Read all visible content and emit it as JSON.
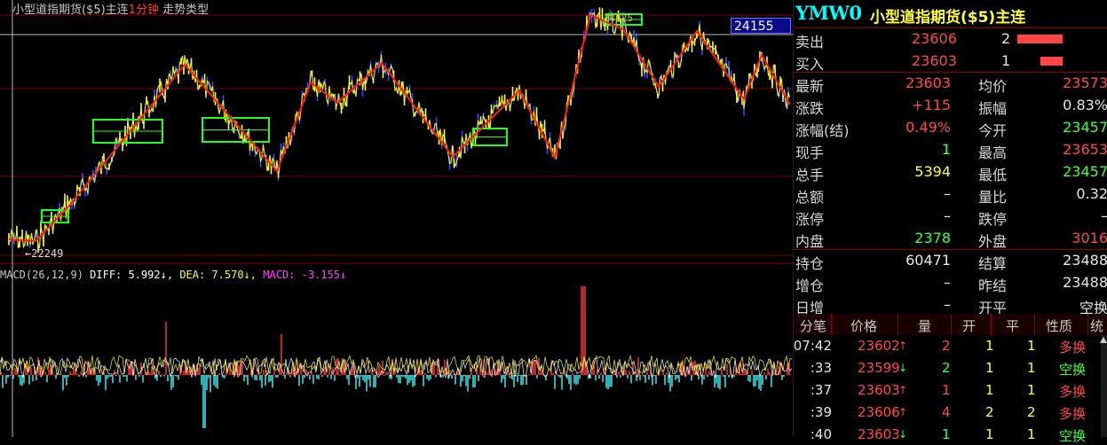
{
  "chart": {
    "title_prefix": "小型道指期货($5)主连",
    "period": "1分钟",
    "trend_label": "走势类型",
    "low_label": "22249",
    "high_label": "24325",
    "current_price_box": "24155"
  },
  "macd": {
    "name": "MACD(26,12,9)",
    "diff": "DIFF: 5.992↓,",
    "dea": "DEA: 7.570↓,",
    "macd": "MACD: -3.155↓"
  },
  "panel": {
    "code": "YMW0",
    "name": "小型道指期货($5)主连",
    "sell": {
      "label": "卖出",
      "price": "23606",
      "volume": "2"
    },
    "buy": {
      "label": "买入",
      "price": "23603",
      "volume": "1"
    },
    "stats": [
      {
        "l1": "最新",
        "v1": "23603",
        "c1": "red",
        "l2": "均价",
        "v2": "23573",
        "c2": "red"
      },
      {
        "l1": "涨跌",
        "v1": "+115",
        "c1": "red",
        "l2": "振幅",
        "v2": "0.83%",
        "c2": "white"
      },
      {
        "l1": "涨幅(结)",
        "v1": "0.49%",
        "c1": "red",
        "l2": "今开",
        "v2": "23457",
        "c2": "green"
      },
      {
        "l1": "现手",
        "v1": "1",
        "c1": "green",
        "l2": "最高",
        "v2": "23653",
        "c2": "red"
      },
      {
        "l1": "总手",
        "v1": "5394",
        "c1": "yellow",
        "l2": "最低",
        "v2": "23457",
        "c2": "green"
      },
      {
        "l1": "总额",
        "v1": "–",
        "c1": "white",
        "l2": "量比",
        "v2": "0.32",
        "c2": "white"
      },
      {
        "l1": "涨停",
        "v1": "–",
        "c1": "white",
        "l2": "跌停",
        "v2": "–",
        "c2": "white"
      },
      {
        "l1": "内盘",
        "v1": "2378",
        "c1": "green",
        "l2": "外盘",
        "v2": "3016",
        "c2": "red"
      },
      {
        "l1": "持仓",
        "v1": "60471",
        "c1": "white",
        "l2": "结算",
        "v2": "23488",
        "c2": "white"
      },
      {
        "l1": "增仓",
        "v1": "–",
        "c1": "white",
        "l2": "昨结",
        "v2": "23488",
        "c2": "white"
      },
      {
        "l1": "日增",
        "v1": "–",
        "c1": "white",
        "l2": "开平",
        "v2": "空换",
        "c2": "white"
      }
    ],
    "tick_header": [
      "分笔",
      "价格",
      "量",
      "开",
      "平",
      "性质",
      "统"
    ],
    "ticks": [
      {
        "time": "07:42",
        "price": "23602",
        "dir": "up",
        "vol": "2",
        "open": "1",
        "close": "1",
        "nature": "多换",
        "nc": "red"
      },
      {
        "time": ":33",
        "price": "23599",
        "dir": "down",
        "vol": "2",
        "open": "1",
        "close": "1",
        "nature": "空换",
        "nc": "green"
      },
      {
        "time": ":37",
        "price": "23603",
        "dir": "up",
        "vol": "1",
        "open": "1",
        "close": "1",
        "nature": "多换",
        "nc": "red"
      },
      {
        "time": ":39",
        "price": "23606",
        "dir": "up",
        "vol": "4",
        "open": "2",
        "close": "2",
        "nature": "多换",
        "nc": "red"
      },
      {
        "time": ":40",
        "price": "23603",
        "dir": "down",
        "vol": "1",
        "open": "1",
        "close": "1",
        "nature": "空换",
        "nc": "green"
      }
    ]
  },
  "colors": {
    "up": "#ff3b3b",
    "down": "#40ff40",
    "price_line": "#ffff30",
    "candle_down": "#3050ff",
    "zigzag": "#ff1a1a",
    "pivot_box": "#20ff20",
    "macd_pos": "#ff4040",
    "macd_neg": "#40ffff",
    "macd_line": "#ffff30"
  }
}
